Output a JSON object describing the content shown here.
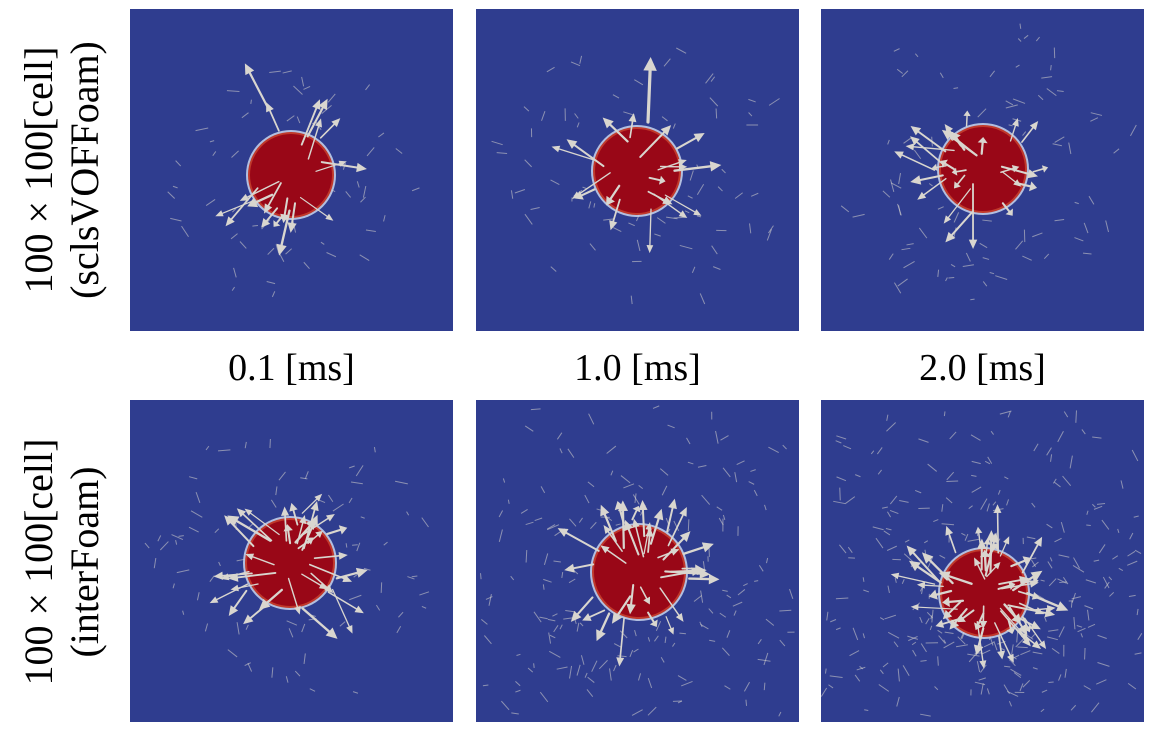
{
  "row_labels": [
    {
      "line1": "100 × 100[cell]",
      "line2": "(sclsVOFFoam)"
    },
    {
      "line1": "100 × 100[cell]",
      "line2": "(interFoam)"
    }
  ],
  "time_labels": [
    "0.1 [ms]",
    "1.0 [ms]",
    "2.0 [ms]"
  ],
  "colors": {
    "background_field": "#2f3d8f",
    "droplet_fill": "#990717",
    "interface_ring": "#c9d6ef",
    "arrow": "#d9d6cf"
  },
  "panels": [
    {
      "row": 0,
      "col": 0,
      "droplet_radius_px": 42
    },
    {
      "row": 0,
      "col": 1,
      "droplet_radius_px": 43
    },
    {
      "row": 0,
      "col": 2,
      "droplet_radius_px": 43
    },
    {
      "row": 1,
      "col": 0,
      "droplet_radius_px": 44
    },
    {
      "row": 1,
      "col": 1,
      "droplet_radius_px": 46
    },
    {
      "row": 1,
      "col": 2,
      "droplet_radius_px": 43
    }
  ]
}
